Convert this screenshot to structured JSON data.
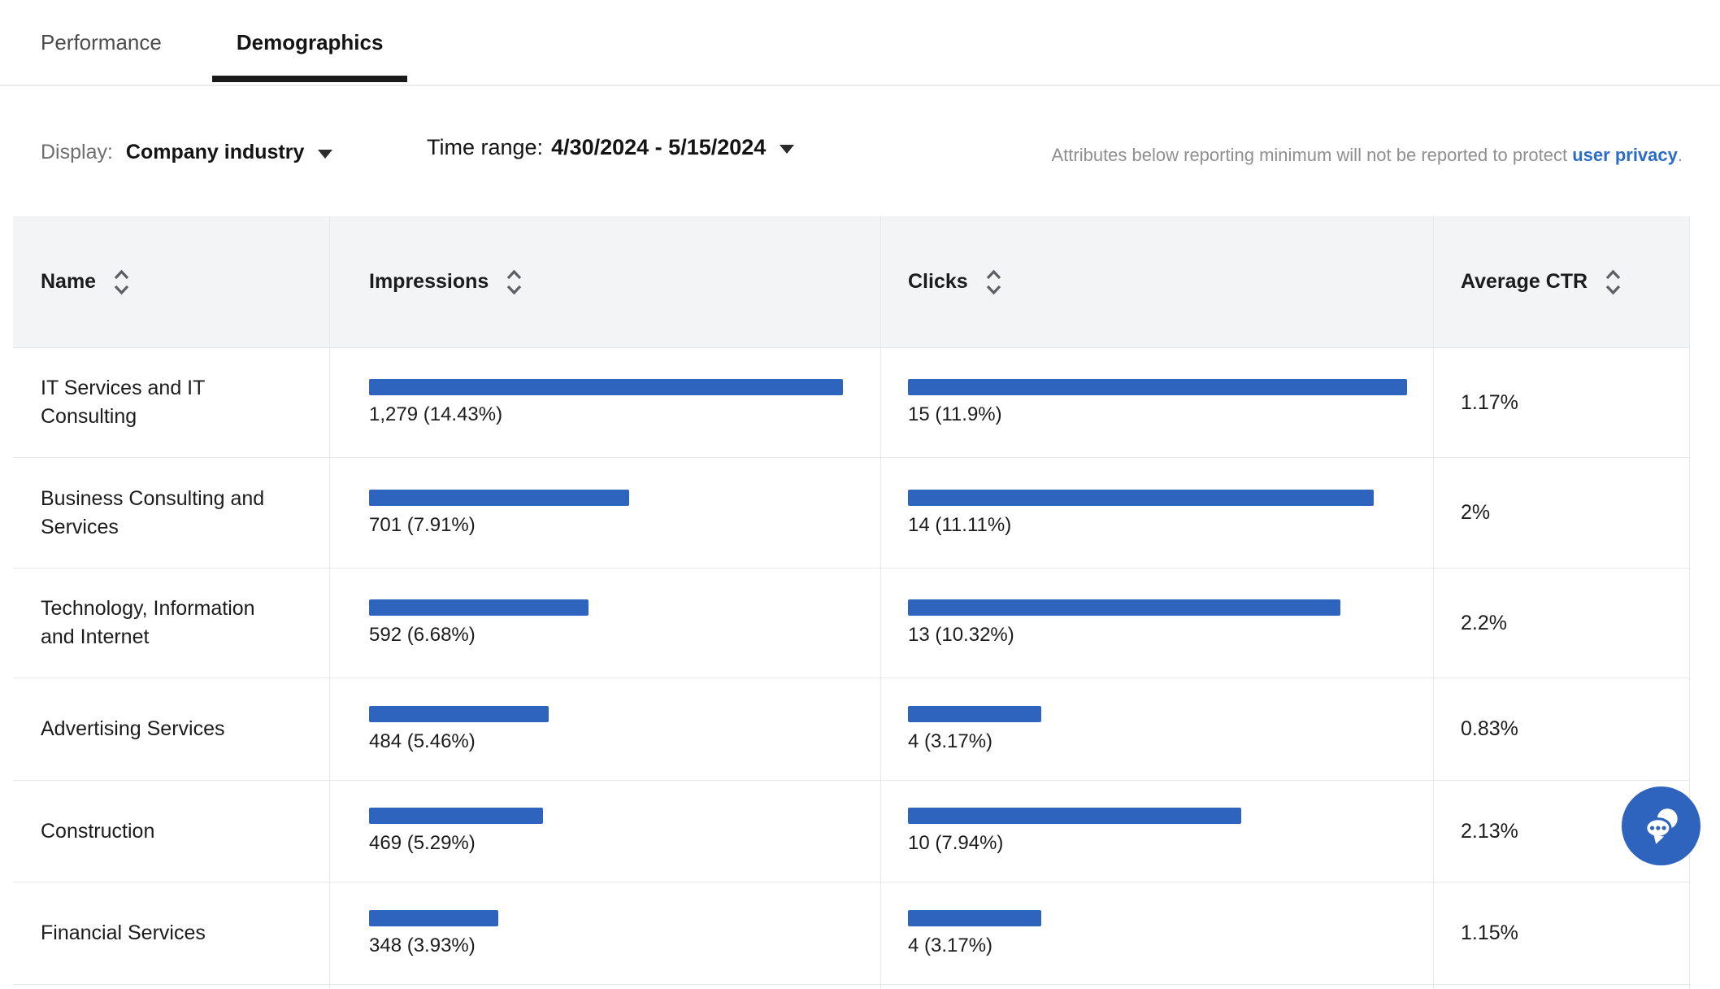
{
  "tabs": [
    {
      "label": "Performance",
      "active": false
    },
    {
      "label": "Demographics",
      "active": true
    }
  ],
  "filters": {
    "display_label": "Display:",
    "display_value": "Company industry",
    "time_range_label": "Time range:",
    "time_range_value": "4/30/2024 - 5/15/2024",
    "privacy_note_text": "Attributes below reporting minimum will not be reported to protect ",
    "privacy_link_text": "user privacy",
    "privacy_note_suffix": "."
  },
  "table": {
    "columns": [
      {
        "label": "Name",
        "sortable": true
      },
      {
        "label": "Impressions",
        "sortable": true
      },
      {
        "label": "Clicks",
        "sortable": true
      },
      {
        "label": "Average CTR",
        "sortable": true
      }
    ],
    "rows": [
      {
        "name": "IT Services and IT Consulting",
        "impressions": "1,279 (14.43%)",
        "impressions_pct": 14.43,
        "clicks": "15 (11.9%)",
        "clicks_pct": 11.9,
        "avg_ctr": "1.17%"
      },
      {
        "name": "Business Consulting and Services",
        "impressions": "701 (7.91%)",
        "impressions_pct": 7.91,
        "clicks": "14 (11.11%)",
        "clicks_pct": 11.11,
        "avg_ctr": "2%"
      },
      {
        "name": "Technology, Information and Internet",
        "impressions": "592 (6.68%)",
        "impressions_pct": 6.68,
        "clicks": "13 (10.32%)",
        "clicks_pct": 10.32,
        "avg_ctr": "2.2%"
      },
      {
        "name": "Advertising Services",
        "impressions": "484 (5.46%)",
        "impressions_pct": 5.46,
        "clicks": "4 (3.17%)",
        "clicks_pct": 3.17,
        "avg_ctr": "0.83%"
      },
      {
        "name": "Construction",
        "impressions": "469 (5.29%)",
        "impressions_pct": 5.29,
        "clicks": "10 (7.94%)",
        "clicks_pct": 7.94,
        "avg_ctr": "2.13%"
      },
      {
        "name": "Financial Services",
        "impressions": "348 (3.93%)",
        "impressions_pct": 3.93,
        "clicks": "4 (3.17%)",
        "clicks_pct": 3.17,
        "avg_ctr": "1.15%"
      }
    ]
  },
  "chart_data": {
    "type": "table",
    "title": "Demographics - Company industry",
    "categories": [
      "IT Services and IT Consulting",
      "Business Consulting and Services",
      "Technology, Information and Internet",
      "Advertising Services",
      "Construction",
      "Financial Services"
    ],
    "series": [
      {
        "name": "Impressions",
        "values": [
          1279,
          701,
          592,
          484,
          469,
          348
        ]
      },
      {
        "name": "Impressions %",
        "values": [
          14.43,
          7.91,
          6.68,
          5.46,
          5.29,
          3.93
        ]
      },
      {
        "name": "Clicks",
        "values": [
          15,
          14,
          13,
          4,
          10,
          4
        ]
      },
      {
        "name": "Clicks %",
        "values": [
          11.9,
          11.11,
          10.32,
          3.17,
          7.94,
          3.17
        ]
      },
      {
        "name": "Average CTR %",
        "values": [
          1.17,
          2,
          2.2,
          0.83,
          2.13,
          1.15
        ]
      }
    ]
  },
  "icons": {
    "sort": "sort-updown-chevrons",
    "dropdown": "caret-down-triangle",
    "chat": "chat-bubbles"
  },
  "colors": {
    "bar": "#2F64BE",
    "link": "#2C6BC7",
    "active_tab_underline": "#1A1A1A",
    "header_bg": "#F3F4F6"
  },
  "chat_button": {
    "icon": "chat-bubbles-icon"
  }
}
